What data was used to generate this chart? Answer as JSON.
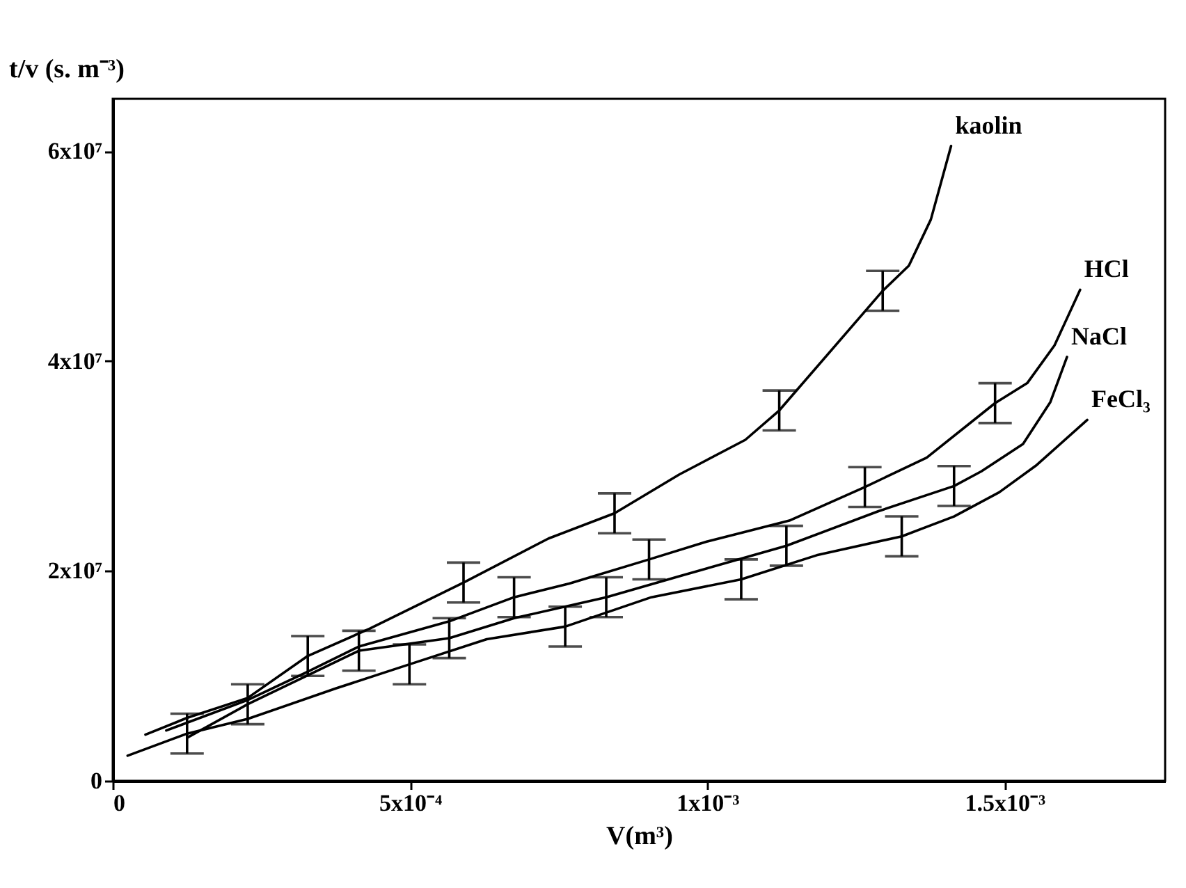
{
  "chart_data": {
    "type": "line",
    "xlabel": "V(m³)",
    "ylabel": "t/v (s. m⁻³)",
    "xlim": [
      0,
      0.00177
    ],
    "ylim": [
      0,
      65000000
    ],
    "xticks": [
      {
        "value": 0,
        "label": "0"
      },
      {
        "value": 0.0005,
        "label": "5x10⁻⁴"
      },
      {
        "value": 0.001,
        "label": "1x10⁻³"
      },
      {
        "value": 0.0015,
        "label": "1.5x10⁻³"
      }
    ],
    "yticks": [
      {
        "value": 0,
        "label": "0"
      },
      {
        "value": 20000000,
        "label": "2x10⁷"
      },
      {
        "value": 40000000,
        "label": "4x10⁷"
      },
      {
        "value": 60000000,
        "label": "6x10⁷"
      }
    ],
    "grid": false,
    "legend": false,
    "marker": "none",
    "line_style": "solid",
    "series": [
      {
        "name": "kaolin",
        "color": "#000000",
        "x": [
          5.5e-05,
          0.000125,
          0.000227,
          0.000328,
          0.000432,
          0.00059,
          0.000733,
          0.000844,
          0.000953,
          0.001064,
          0.001121,
          0.001295,
          0.001339,
          0.001376,
          0.00141
        ],
        "values": [
          4400000,
          6000000,
          7900000,
          11900000,
          14500000,
          18900000,
          23100000,
          25500000,
          29200000,
          32500000,
          35300000,
          46700000,
          49100000,
          53500000,
          60500000
        ],
        "errors": [
          null,
          null,
          null,
          1900000,
          null,
          1900000,
          null,
          1900000,
          null,
          null,
          1900000,
          1900000,
          null,
          null,
          null
        ]
      },
      {
        "name": "HCl",
        "color": "#000000",
        "x": [
          9e-05,
          0.000227,
          0.000328,
          0.000414,
          0.000566,
          0.000675,
          0.000768,
          0.000902,
          0.000999,
          0.001138,
          0.001265,
          0.001369,
          0.001484,
          0.001538,
          0.001584,
          0.001627
        ],
        "values": [
          4800000,
          7700000,
          10400000,
          12800000,
          15200000,
          17500000,
          18800000,
          21100000,
          22800000,
          24800000,
          28000000,
          30800000,
          36000000,
          37900000,
          41500000,
          46800000
        ],
        "errors": [
          null,
          null,
          null,
          null,
          null,
          1900000,
          null,
          1900000,
          null,
          null,
          1900000,
          null,
          1900000,
          null,
          null,
          null
        ]
      },
      {
        "name": "NaCl",
        "color": "#000000",
        "x": [
          0.000125,
          0.000227,
          0.000414,
          0.000566,
          0.000675,
          0.00083,
          0.000953,
          0.001133,
          0.001288,
          0.001415,
          0.001461,
          0.001531,
          0.001577,
          0.001605
        ],
        "values": [
          4100000,
          7300000,
          12400000,
          13600000,
          15500000,
          17500000,
          19500000,
          22400000,
          25700000,
          28100000,
          29500000,
          32100000,
          36100000,
          40400000
        ],
        "errors": [
          null,
          1900000,
          1900000,
          1900000,
          null,
          1900000,
          null,
          1900000,
          null,
          1900000,
          null,
          null,
          null,
          null
        ]
      },
      {
        "name": "FeCl₃",
        "color": "#000000",
        "x": [
          2.5e-05,
          0.000125,
          0.000227,
          0.000375,
          0.000499,
          0.000629,
          0.000761,
          0.000906,
          0.001057,
          0.001184,
          0.001327,
          0.001415,
          0.001491,
          0.001554,
          0.001639
        ],
        "values": [
          2400000,
          4500000,
          5900000,
          8800000,
          11100000,
          13500000,
          14700000,
          17500000,
          19200000,
          21500000,
          23300000,
          25200000,
          27500000,
          30100000,
          34400000
        ],
        "errors": [
          null,
          1900000,
          null,
          null,
          1900000,
          null,
          1900000,
          null,
          1900000,
          null,
          1900000,
          null,
          null,
          null,
          null
        ]
      }
    ]
  }
}
